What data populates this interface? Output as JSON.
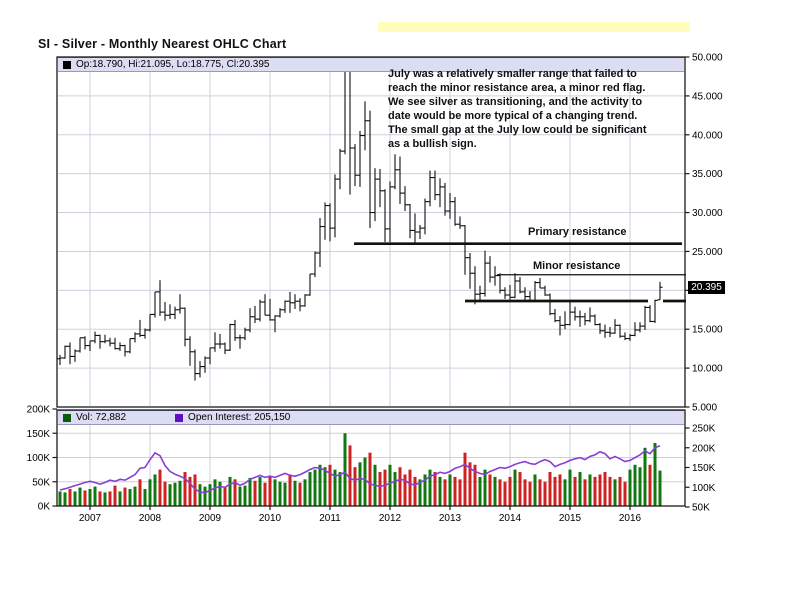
{
  "page": {
    "title": "SI - Silver - Monthly Nearest OHLC Chart"
  },
  "price_pane": {
    "legend_text": "Op:18.790, Hi:21.095, Lo:18.775, Cl:20.395",
    "annotation_lines": [
      "July was a relatively smaller range that failed to",
      "reach the minor resistance area, a minor red flag.",
      "We see silver as transitioning, and the activity to",
      "date would be more typical of a changing trend.",
      "The small gap at the July low could be significant",
      "as a bullish sign."
    ],
    "primary_resistance_label": "Primary resistance",
    "minor_resistance_label": "Minor resistance",
    "last_price_label": "20.395"
  },
  "volume_pane": {
    "vol_legend": "Vol: 72,882",
    "oi_legend": "Open Interest: 205,150"
  },
  "colors": {
    "bar": "#111111",
    "up": "#117711",
    "down": "#cc2222",
    "oi_line": "#8a3fd4",
    "grid": "#cfcfdd",
    "border": "#1a1a1a",
    "vol_swatch": "#0a5c0a",
    "oi_swatch": "#5f10c4",
    "price_swatch": "#000000",
    "legend_bg": "#dcdcf2",
    "highlight_strip": "#ffffbb",
    "last_price_bg": "#000000"
  },
  "chart_data": {
    "type": "ohlc+volume",
    "title": "SI - Silver - Monthly Nearest OHLC Chart",
    "start_month": "2006-07",
    "end_month": "2016-07",
    "price_axis": {
      "min": 5,
      "max": 50,
      "side": "right",
      "ticks": [
        {
          "v": 50,
          "label": "50.000"
        },
        {
          "v": 45,
          "label": "45.000"
        },
        {
          "v": 40,
          "label": "40.000"
        },
        {
          "v": 35,
          "label": "35.000"
        },
        {
          "v": 30,
          "label": "30.000"
        },
        {
          "v": 25,
          "label": "25.000"
        },
        {
          "v": 20,
          "label": null
        },
        {
          "v": 15,
          "label": "15.000"
        },
        {
          "v": 10,
          "label": "10.000"
        },
        {
          "v": 5,
          "label": "5.000"
        }
      ]
    },
    "volume_axis_left": {
      "ticks": [
        {
          "v": 200,
          "label": "200K"
        },
        {
          "v": 150,
          "label": "150K"
        },
        {
          "v": 100,
          "label": "100K"
        },
        {
          "v": 50,
          "label": "50K"
        },
        {
          "v": 0,
          "label": "0K"
        }
      ]
    },
    "oi_axis_right": {
      "ticks": [
        {
          "v": 250,
          "label": "250K"
        },
        {
          "v": 200,
          "label": "200K"
        },
        {
          "v": 150,
          "label": "150K"
        },
        {
          "v": 100,
          "label": "100K"
        },
        {
          "v": 50,
          "label": "50K"
        }
      ]
    },
    "years": [
      {
        "label": "2007",
        "i": 6
      },
      {
        "label": "2008",
        "i": 18
      },
      {
        "label": "2009",
        "i": 30
      },
      {
        "label": "2010",
        "i": 42
      },
      {
        "label": "2011",
        "i": 54
      },
      {
        "label": "2012",
        "i": 66
      },
      {
        "label": "2013",
        "i": 78
      },
      {
        "label": "2014",
        "i": 90
      },
      {
        "label": "2015",
        "i": 102
      },
      {
        "label": "2016",
        "i": 114
      }
    ],
    "last_price": {
      "value": 20.395,
      "label": "20.395"
    },
    "lines": [
      {
        "name": "primary-resistance",
        "price": 26.0,
        "i0": 58.8,
        "i1": 124.4,
        "width": 2.6
      },
      {
        "name": "minor-resistance",
        "price": 22.0,
        "i0": 87.4,
        "i1": 125.2,
        "width": 1.2
      },
      {
        "name": "support",
        "price": 18.63,
        "i0": 81,
        "i1": 117.6,
        "width": 2.8
      },
      {
        "name": "support-extension",
        "price": 18.63,
        "i0": 120.6,
        "i1": 125.2,
        "width": 2.8
      }
    ],
    "ohlc": [
      [
        11.2,
        11.7,
        10.4,
        11.3
      ],
      [
        11.3,
        12.9,
        11.2,
        12.8
      ],
      [
        12.8,
        13.3,
        10.5,
        11.5
      ],
      [
        11.5,
        12.4,
        10.8,
        12.2
      ],
      [
        12.2,
        13.9,
        12.0,
        13.9
      ],
      [
        13.9,
        14.1,
        12.4,
        12.9
      ],
      [
        12.9,
        13.5,
        12.2,
        13.5
      ],
      [
        13.5,
        14.7,
        13.2,
        14.2
      ],
      [
        14.2,
        14.3,
        12.5,
        13.4
      ],
      [
        13.4,
        14.3,
        13.2,
        13.5
      ],
      [
        13.5,
        13.9,
        12.8,
        13.2
      ],
      [
        13.2,
        13.9,
        12.4,
        12.5
      ],
      [
        12.5,
        13.3,
        12.2,
        12.9
      ],
      [
        12.9,
        13.0,
        11.5,
        12.1
      ],
      [
        12.1,
        13.8,
        11.9,
        13.8
      ],
      [
        13.8,
        14.6,
        13.3,
        14.4
      ],
      [
        14.4,
        16.2,
        14.0,
        14.2
      ],
      [
        14.2,
        15.1,
        13.8,
        14.9
      ],
      [
        14.9,
        16.9,
        14.7,
        16.9
      ],
      [
        16.9,
        19.8,
        16.5,
        19.8
      ],
      [
        19.8,
        21.3,
        16.7,
        17.2
      ],
      [
        17.2,
        18.5,
        16.1,
        16.8
      ],
      [
        16.8,
        18.2,
        16.3,
        16.9
      ],
      [
        16.9,
        17.9,
        16.3,
        17.5
      ],
      [
        17.5,
        19.5,
        17.0,
        17.7
      ],
      [
        17.7,
        17.8,
        12.8,
        13.7
      ],
      [
        13.7,
        14.1,
        10.3,
        12.1
      ],
      [
        12.1,
        12.4,
        8.4,
        9.3
      ],
      [
        9.3,
        10.9,
        8.8,
        10.2
      ],
      [
        10.2,
        11.5,
        9.4,
        11.3
      ],
      [
        11.3,
        12.6,
        10.5,
        12.6
      ],
      [
        12.6,
        14.6,
        12.1,
        13.1
      ],
      [
        13.1,
        14.4,
        12.5,
        13.1
      ],
      [
        13.1,
        13.3,
        11.8,
        12.3
      ],
      [
        12.3,
        15.7,
        12.2,
        15.6
      ],
      [
        15.6,
        16.2,
        13.5,
        13.9
      ],
      [
        13.9,
        14.3,
        12.5,
        13.9
      ],
      [
        13.9,
        15.2,
        13.6,
        14.9
      ],
      [
        14.9,
        17.7,
        14.6,
        16.6
      ],
      [
        16.6,
        18.0,
        15.8,
        16.3
      ],
      [
        16.3,
        18.8,
        16.0,
        18.5
      ],
      [
        18.5,
        19.5,
        16.8,
        16.8
      ],
      [
        16.8,
        18.9,
        16.1,
        16.2
      ],
      [
        16.2,
        16.8,
        14.6,
        16.7
      ],
      [
        16.7,
        17.7,
        16.5,
        17.5
      ],
      [
        17.5,
        18.7,
        17.1,
        18.6
      ],
      [
        18.6,
        19.8,
        17.1,
        18.4
      ],
      [
        18.4,
        19.5,
        17.6,
        18.6
      ],
      [
        18.6,
        19.0,
        17.3,
        18.0
      ],
      [
        18.0,
        19.5,
        17.9,
        19.4
      ],
      [
        19.4,
        22.1,
        19.3,
        22.1
      ],
      [
        22.1,
        25.0,
        21.7,
        24.8
      ],
      [
        24.8,
        29.3,
        23.0,
        28.2
      ],
      [
        28.2,
        31.3,
        26.5,
        30.9
      ],
      [
        30.9,
        31.2,
        26.3,
        28.0
      ],
      [
        28.0,
        34.9,
        26.8,
        34.3
      ],
      [
        34.3,
        38.2,
        33.0,
        37.9
      ],
      [
        37.9,
        49.8,
        37.5,
        48.6
      ],
      [
        48.6,
        49.0,
        32.3,
        38.3
      ],
      [
        38.3,
        38.8,
        33.4,
        34.8
      ],
      [
        34.8,
        40.5,
        33.3,
        39.9
      ],
      [
        39.9,
        44.3,
        38.0,
        41.8
      ],
      [
        41.8,
        43.1,
        28.0,
        30.0
      ],
      [
        30.0,
        35.7,
        28.9,
        34.3
      ],
      [
        34.3,
        35.6,
        30.7,
        32.8
      ],
      [
        32.8,
        33.0,
        26.2,
        27.9
      ],
      [
        27.9,
        34.0,
        26.2,
        33.3
      ],
      [
        33.3,
        37.5,
        33.0,
        35.5
      ],
      [
        35.5,
        37.2,
        31.1,
        32.5
      ],
      [
        32.5,
        33.4,
        30.2,
        31.0
      ],
      [
        31.0,
        31.1,
        26.7,
        27.7
      ],
      [
        27.7,
        29.9,
        26.1,
        27.5
      ],
      [
        27.5,
        28.4,
        26.6,
        28.0
      ],
      [
        28.0,
        31.8,
        27.2,
        31.4
      ],
      [
        31.4,
        35.4,
        30.8,
        34.5
      ],
      [
        34.5,
        35.4,
        31.6,
        32.3
      ],
      [
        32.3,
        34.4,
        30.7,
        33.3
      ],
      [
        33.3,
        33.8,
        29.6,
        30.2
      ],
      [
        30.2,
        32.5,
        29.2,
        31.4
      ],
      [
        31.4,
        32.0,
        28.3,
        28.5
      ],
      [
        28.5,
        29.5,
        27.9,
        28.3
      ],
      [
        28.3,
        28.4,
        22.0,
        24.2
      ],
      [
        24.2,
        24.8,
        20.2,
        22.2
      ],
      [
        22.2,
        23.1,
        18.2,
        19.5
      ],
      [
        19.5,
        20.6,
        18.7,
        19.6
      ],
      [
        19.6,
        25.1,
        19.2,
        23.5
      ],
      [
        23.5,
        24.4,
        21.0,
        21.7
      ],
      [
        21.7,
        23.1,
        20.6,
        21.9
      ],
      [
        21.9,
        22.2,
        19.6,
        20.0
      ],
      [
        20.0,
        20.4,
        18.9,
        19.4
      ],
      [
        19.4,
        20.7,
        18.8,
        19.1
      ],
      [
        19.1,
        22.2,
        19.0,
        21.2
      ],
      [
        21.2,
        21.7,
        19.6,
        19.8
      ],
      [
        19.8,
        20.4,
        18.7,
        19.2
      ],
      [
        19.2,
        19.9,
        18.6,
        18.7
      ],
      [
        18.7,
        21.2,
        18.6,
        21.0
      ],
      [
        21.0,
        21.6,
        20.3,
        20.3
      ],
      [
        20.3,
        20.6,
        19.3,
        19.4
      ],
      [
        19.4,
        19.6,
        16.8,
        17.0
      ],
      [
        17.0,
        17.6,
        15.9,
        16.1
      ],
      [
        16.1,
        16.7,
        14.2,
        15.5
      ],
      [
        15.5,
        17.3,
        15.0,
        15.6
      ],
      [
        15.6,
        18.5,
        15.5,
        17.2
      ],
      [
        17.2,
        17.9,
        16.1,
        16.6
      ],
      [
        16.6,
        17.4,
        15.3,
        16.6
      ],
      [
        16.6,
        17.1,
        15.5,
        16.1
      ],
      [
        16.1,
        17.8,
        15.9,
        16.7
      ],
      [
        16.7,
        16.9,
        15.5,
        15.6
      ],
      [
        15.6,
        15.8,
        14.4,
        14.8
      ],
      [
        14.8,
        15.6,
        13.9,
        14.6
      ],
      [
        14.6,
        15.3,
        14.0,
        14.5
      ],
      [
        14.5,
        16.3,
        14.4,
        15.5
      ],
      [
        15.5,
        15.6,
        13.9,
        14.1
      ],
      [
        14.1,
        14.6,
        13.6,
        13.8
      ],
      [
        13.8,
        14.4,
        13.5,
        14.2
      ],
      [
        14.2,
        15.9,
        14.1,
        14.9
      ],
      [
        14.9,
        15.9,
        14.6,
        15.4
      ],
      [
        15.4,
        18.0,
        14.9,
        17.8
      ],
      [
        17.8,
        18.1,
        15.9,
        16.0
      ],
      [
        16.0,
        18.8,
        15.8,
        18.7
      ],
      [
        18.79,
        21.095,
        18.775,
        20.395
      ]
    ],
    "volume_k": [
      30,
      28,
      35,
      30,
      38,
      32,
      35,
      40,
      30,
      28,
      30,
      42,
      30,
      38,
      35,
      40,
      55,
      35,
      55,
      65,
      75,
      50,
      45,
      48,
      52,
      70,
      60,
      65,
      45,
      40,
      45,
      55,
      50,
      40,
      60,
      55,
      40,
      42,
      58,
      52,
      60,
      48,
      60,
      55,
      50,
      48,
      65,
      52,
      48,
      55,
      70,
      75,
      85,
      80,
      85,
      75,
      70,
      150,
      125,
      80,
      90,
      100,
      110,
      85,
      70,
      75,
      85,
      70,
      80,
      65,
      75,
      60,
      55,
      65,
      75,
      70,
      60,
      55,
      65,
      60,
      55,
      110,
      90,
      85,
      60,
      75,
      65,
      60,
      55,
      50,
      60,
      75,
      70,
      55,
      50,
      65,
      55,
      50,
      70,
      60,
      65,
      55,
      75,
      60,
      70,
      55,
      65,
      60,
      65,
      70,
      60,
      55,
      60,
      50,
      75,
      85,
      80,
      120,
      85,
      130,
      73
    ],
    "open_interest_k": [
      93,
      96,
      100,
      104,
      108,
      112,
      115,
      112,
      108,
      112,
      118,
      115,
      120,
      118,
      125,
      132,
      148,
      150,
      170,
      187,
      180,
      155,
      140,
      133,
      128,
      122,
      110,
      95,
      88,
      86,
      92,
      98,
      102,
      100,
      108,
      112,
      105,
      110,
      120,
      125,
      130,
      125,
      128,
      125,
      130,
      135,
      130,
      128,
      132,
      138,
      145,
      150,
      148,
      143,
      135,
      128,
      132,
      138,
      122,
      118,
      122,
      120,
      108,
      105,
      102,
      105,
      110,
      115,
      120,
      118,
      108,
      106,
      112,
      118,
      128,
      132,
      138,
      135,
      140,
      148,
      152,
      158,
      148,
      140,
      135,
      132,
      140,
      145,
      150,
      148,
      152,
      158,
      162,
      165,
      160,
      158,
      165,
      170,
      165,
      152,
      158,
      162,
      168,
      172,
      175,
      170,
      178,
      182,
      190,
      185,
      172,
      178,
      172,
      165,
      168,
      175,
      182,
      192,
      185,
      200,
      205.15
    ]
  }
}
